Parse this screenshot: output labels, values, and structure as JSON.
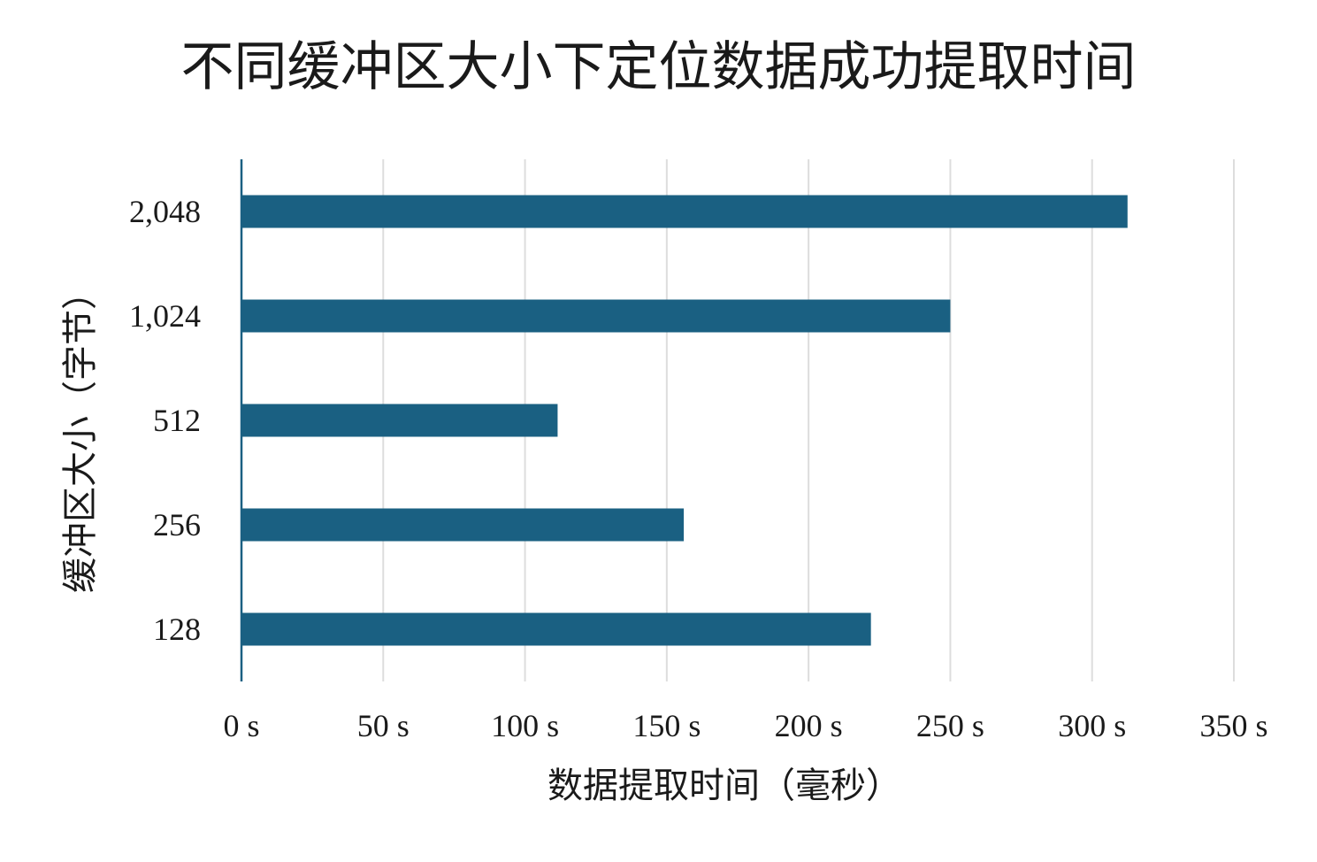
{
  "chart_data": {
    "type": "bar",
    "orientation": "horizontal",
    "title": "不同缓冲区大小下定位数据成功提取时间",
    "xlabel": "数据提取时间（毫秒）",
    "ylabel": "缓冲区大小（字节）",
    "categories": [
      "2,048",
      "1,024",
      "512",
      "256",
      "128"
    ],
    "values": [
      312.5,
      250,
      111.5,
      156,
      222
    ],
    "xlim": [
      0,
      350
    ],
    "x_ticks": [
      0,
      50,
      100,
      150,
      200,
      250,
      300,
      350
    ],
    "x_tick_labels": [
      "0 s",
      "50 s",
      "100 s",
      "150 s",
      "200 s",
      "250 s",
      "300 s",
      "350 s"
    ],
    "grid": "vertical",
    "bar_color": "#1a6082",
    "grid_color": "#dddddd",
    "axis_color": "#1a6082"
  }
}
